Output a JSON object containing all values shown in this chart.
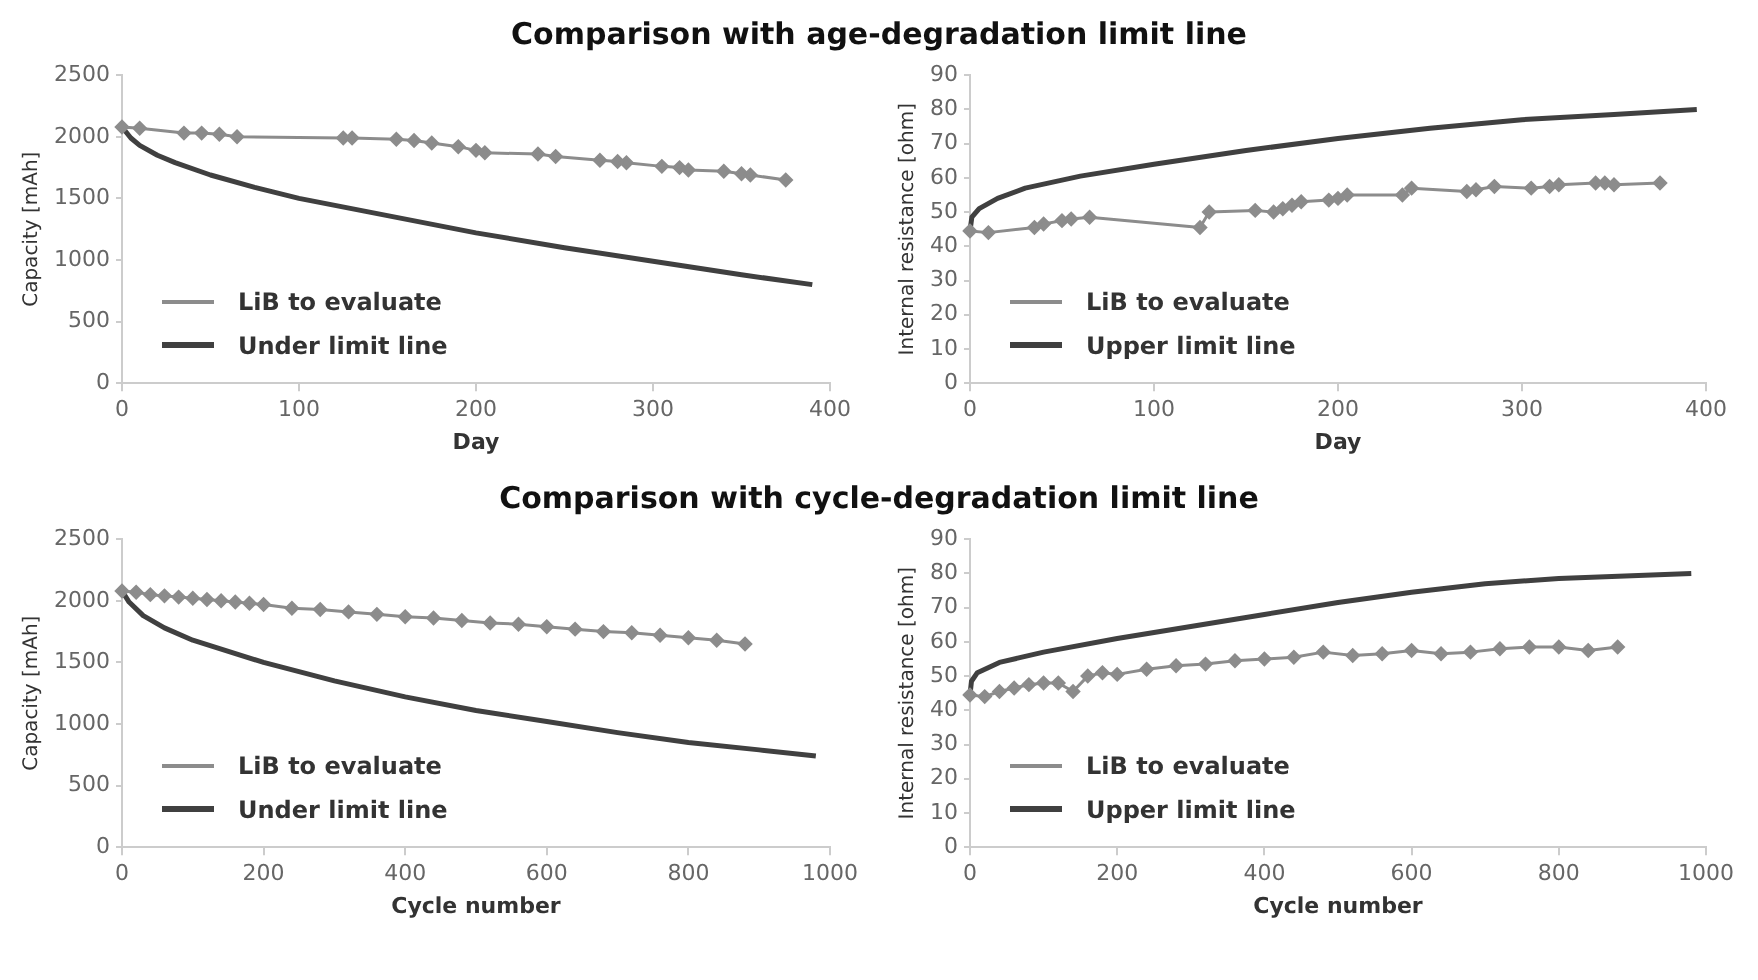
{
  "chart_data": [
    {
      "type": "line",
      "title": "Comparison with age-degradation limit line",
      "xlabel": "Day",
      "ylabel": "Capacity [mAh]",
      "xlim": [
        0,
        400
      ],
      "xticks": [
        0,
        100,
        200,
        300,
        400
      ],
      "ylim": [
        0,
        2500
      ],
      "yticks": [
        0,
        500,
        1000,
        1500,
        2000,
        2500
      ],
      "legend": "bottom left",
      "series": [
        {
          "name": "LiB to evaluate",
          "color": "#8c8c8c",
          "marker": "diamond",
          "x": [
            0,
            10,
            35,
            45,
            55,
            65,
            125,
            130,
            155,
            165,
            175,
            190,
            200,
            205,
            235,
            245,
            270,
            280,
            285,
            305,
            315,
            320,
            340,
            350,
            355,
            375
          ],
          "values": [
            2080,
            2070,
            2030,
            2030,
            2020,
            2000,
            1990,
            1990,
            1980,
            1970,
            1950,
            1920,
            1890,
            1870,
            1860,
            1840,
            1810,
            1800,
            1790,
            1760,
            1750,
            1730,
            1720,
            1700,
            1690,
            1650
          ]
        },
        {
          "name": "Under limit line",
          "color": "#404040",
          "marker": "none",
          "x": [
            0,
            5,
            10,
            20,
            30,
            50,
            75,
            100,
            150,
            200,
            250,
            300,
            350,
            390
          ],
          "values": [
            2080,
            1990,
            1930,
            1850,
            1790,
            1690,
            1590,
            1500,
            1360,
            1220,
            1100,
            990,
            880,
            800
          ]
        }
      ]
    },
    {
      "type": "line",
      "xlabel": "Day",
      "ylabel": "Internal resistance [ohm]",
      "xlim": [
        0,
        400
      ],
      "xticks": [
        0,
        100,
        200,
        300,
        400
      ],
      "ylim": [
        0,
        90
      ],
      "yticks": [
        0,
        10,
        20,
        30,
        40,
        50,
        60,
        70,
        80,
        90
      ],
      "legend": "bottom left",
      "series": [
        {
          "name": "LiB to evaluate",
          "color": "#8c8c8c",
          "marker": "diamond",
          "x": [
            0,
            10,
            35,
            40,
            50,
            55,
            65,
            125,
            130,
            155,
            165,
            170,
            175,
            180,
            195,
            200,
            205,
            235,
            240,
            270,
            275,
            285,
            305,
            315,
            320,
            340,
            345,
            350,
            375
          ],
          "values": [
            44.5,
            44,
            45.5,
            46.5,
            47.5,
            48,
            48.5,
            45.5,
            50,
            50.5,
            50,
            51,
            52,
            53,
            53.5,
            54,
            55,
            55,
            57,
            56,
            56.5,
            57.5,
            57,
            57.5,
            58,
            58.5,
            58.5,
            58,
            58.5
          ]
        },
        {
          "name": "Upper limit line",
          "color": "#404040",
          "marker": "none",
          "x": [
            0,
            1,
            5,
            15,
            30,
            60,
            100,
            150,
            200,
            250,
            300,
            350,
            395
          ],
          "values": [
            44.5,
            48.5,
            51,
            54,
            57,
            60.5,
            64,
            68,
            71.5,
            74.5,
            77,
            78.5,
            80
          ]
        }
      ]
    },
    {
      "type": "line",
      "title": "Comparison with cycle-degradation limit line",
      "xlabel": "Cycle number",
      "ylabel": "Capacity [mAh]",
      "xlim": [
        0,
        1000
      ],
      "xticks": [
        0,
        200,
        400,
        600,
        800,
        1000
      ],
      "ylim": [
        0,
        2500
      ],
      "yticks": [
        0,
        500,
        1000,
        1500,
        2000,
        2500
      ],
      "legend": "bottom left",
      "series": [
        {
          "name": "LiB to evaluate",
          "color": "#8c8c8c",
          "marker": "diamond",
          "x": [
            0,
            20,
            40,
            60,
            80,
            100,
            120,
            140,
            160,
            180,
            200,
            240,
            280,
            320,
            360,
            400,
            440,
            480,
            520,
            560,
            600,
            640,
            680,
            720,
            760,
            800,
            840,
            880
          ],
          "values": [
            2080,
            2070,
            2050,
            2040,
            2030,
            2020,
            2010,
            2000,
            1990,
            1980,
            1970,
            1940,
            1930,
            1910,
            1890,
            1870,
            1860,
            1840,
            1820,
            1810,
            1790,
            1770,
            1750,
            1740,
            1720,
            1700,
            1680,
            1650
          ]
        },
        {
          "name": "Under limit line",
          "color": "#404040",
          "marker": "none",
          "x": [
            0,
            10,
            30,
            60,
            100,
            200,
            300,
            400,
            500,
            600,
            700,
            800,
            900,
            980
          ],
          "values": [
            2080,
            1990,
            1880,
            1780,
            1680,
            1500,
            1350,
            1220,
            1110,
            1020,
            930,
            850,
            790,
            740
          ]
        }
      ]
    },
    {
      "type": "line",
      "xlabel": "Cycle number",
      "ylabel": "Internal resistance [ohm]",
      "xlim": [
        0,
        1000
      ],
      "xticks": [
        0,
        200,
        400,
        600,
        800,
        1000
      ],
      "ylim": [
        0,
        90
      ],
      "yticks": [
        0,
        10,
        20,
        30,
        40,
        50,
        60,
        70,
        80,
        90
      ],
      "legend": "bottom left",
      "series": [
        {
          "name": "LiB to evaluate",
          "color": "#8c8c8c",
          "marker": "diamond",
          "x": [
            0,
            20,
            40,
            60,
            80,
            100,
            120,
            140,
            160,
            180,
            200,
            240,
            280,
            320,
            360,
            400,
            440,
            480,
            520,
            560,
            600,
            640,
            680,
            720,
            760,
            800,
            840,
            880
          ],
          "values": [
            44.5,
            44,
            45.5,
            46.5,
            47.5,
            48,
            48,
            45.5,
            50,
            51,
            50.5,
            52,
            53,
            53.5,
            54.5,
            55,
            55.5,
            57,
            56,
            56.5,
            57.5,
            56.5,
            57,
            58,
            58.5,
            58.5,
            57.5,
            58.5
          ]
        },
        {
          "name": "Upper limit line",
          "color": "#404040",
          "marker": "none",
          "x": [
            0,
            2,
            10,
            40,
            100,
            200,
            300,
            400,
            500,
            600,
            700,
            800,
            980
          ],
          "values": [
            44.5,
            48.5,
            51,
            54,
            57,
            61,
            64.5,
            68,
            71.5,
            74.5,
            77,
            78.5,
            80
          ]
        }
      ]
    }
  ]
}
